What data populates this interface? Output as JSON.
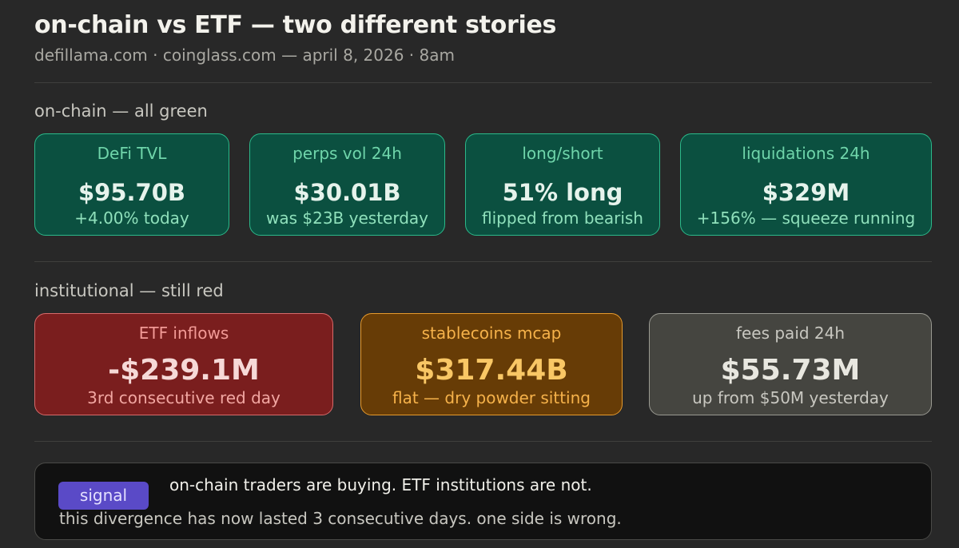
{
  "header": {
    "title": "on-chain vs ETF — two different stories",
    "subtitle": "defillama.com · coinglass.com — april 8, 2026 · 8am"
  },
  "onchain": {
    "label": "on-chain — all green",
    "cards": [
      {
        "label": "DeFi TVL",
        "value": "$95.70B",
        "sub": "+4.00% today"
      },
      {
        "label": "perps vol 24h",
        "value": "$30.01B",
        "sub": "was $23B yesterday"
      },
      {
        "label": "long/short",
        "value": "51% long",
        "sub": "flipped from bearish"
      },
      {
        "label": "liquidations 24h",
        "value": "$329M",
        "sub": "+156% — squeeze running"
      }
    ]
  },
  "institutional": {
    "label": "institutional — still red",
    "cards": [
      {
        "label": "ETF inflows",
        "value": "-$239.1M",
        "sub": "3rd consecutive red day"
      },
      {
        "label": "stablecoins mcap",
        "value": "$317.44B",
        "sub": "flat — dry powder sitting"
      },
      {
        "label": "fees paid 24h",
        "value": "$55.73M",
        "sub": "up from $50M yesterday"
      }
    ]
  },
  "signal": {
    "badge": "signal",
    "line1": "on-chain traders are buying. ETF institutions are not.",
    "line2": "this divergence has now lasted 3 consecutive days. one side is wrong."
  },
  "colors": {
    "background": "#282828",
    "green_card": "#0b5040",
    "red_card": "#7a1e1e",
    "orange_card": "#673c06",
    "grey_card": "#454540",
    "badge": "#5a4ac7"
  }
}
